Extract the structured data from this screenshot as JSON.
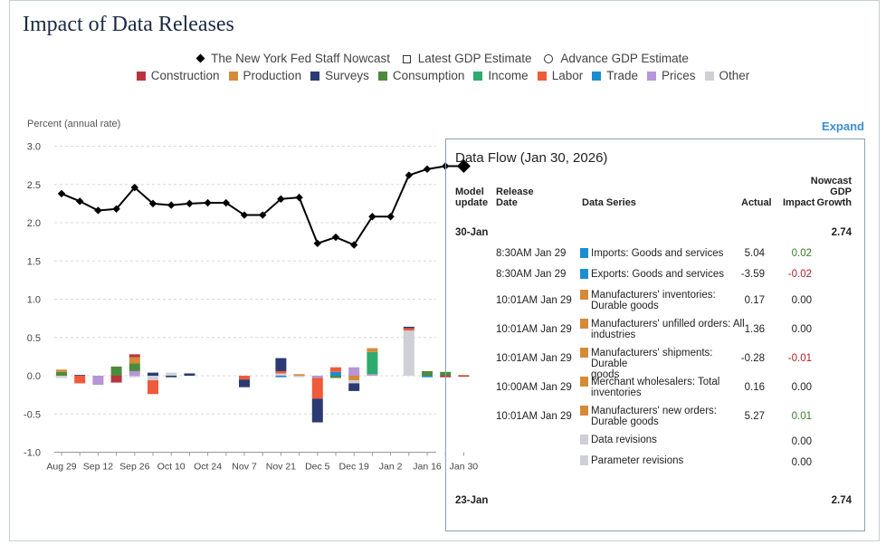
{
  "title": "Impact of Data Releases",
  "legend": {
    "nowcast": "The New York Fed Staff Nowcast",
    "latest": "Latest GDP Estimate",
    "advance": "Advance GDP Estimate",
    "categories": [
      {
        "name": "Construction",
        "color": "#b8343c"
      },
      {
        "name": "Production",
        "color": "#d58a38"
      },
      {
        "name": "Surveys",
        "color": "#2b3a73"
      },
      {
        "name": "Consumption",
        "color": "#4e8a3e"
      },
      {
        "name": "Income",
        "color": "#2eab6e"
      },
      {
        "name": "Labor",
        "color": "#ee5a3a"
      },
      {
        "name": "Trade",
        "color": "#1a8fd0"
      },
      {
        "name": "Prices",
        "color": "#b795d6"
      },
      {
        "name": "Other",
        "color": "#cfd0d5"
      }
    ]
  },
  "chart_data": {
    "type": "bar+line",
    "ylabel": "Percent (annual rate)",
    "ylim": [
      -1.0,
      3.0
    ],
    "yticks": [
      "3.0",
      "2.5",
      "2.0",
      "1.5",
      "1.0",
      "0.5",
      "0.0",
      "-0.5",
      "-1.0"
    ],
    "ytick_values": [
      3.0,
      2.5,
      2.0,
      1.5,
      1.0,
      0.5,
      0.0,
      -0.5,
      -1.0
    ],
    "xtick_labels": [
      "Aug 29",
      "Sep 12",
      "Sep 26",
      "Oct 10",
      "Oct 24",
      "Nov 7",
      "Nov 21",
      "Dec 5",
      "Dec 19",
      "Jan 2",
      "Jan 16",
      "Jan 30"
    ],
    "xtick_index": [
      0,
      2,
      4,
      6,
      8,
      10,
      12,
      14,
      16,
      18,
      20,
      22
    ],
    "nowcast": [
      2.38,
      2.28,
      2.16,
      2.18,
      2.46,
      2.25,
      2.23,
      2.25,
      2.26,
      2.26,
      2.1,
      2.1,
      2.31,
      2.33,
      1.73,
      1.81,
      1.71,
      2.08,
      2.08,
      2.62,
      2.7,
      2.74,
      2.74
    ],
    "bars": [
      [
        {
          "c": "Consumption",
          "v": 0.05
        },
        {
          "c": "Production",
          "v": 0.03
        },
        {
          "c": "Other",
          "v": -0.03
        }
      ],
      [
        {
          "c": "Surveys",
          "v": 0.01
        },
        {
          "c": "Labor",
          "v": -0.1
        }
      ],
      [
        {
          "c": "Prices",
          "v": -0.12
        }
      ],
      [
        {
          "c": "Consumption",
          "v": 0.12
        },
        {
          "c": "Construction",
          "v": -0.09
        }
      ],
      [
        {
          "c": "Prices",
          "v": 0.06
        },
        {
          "c": "Consumption",
          "v": 0.1
        },
        {
          "c": "Production",
          "v": 0.08
        },
        {
          "c": "Construction",
          "v": 0.04
        },
        {
          "c": "Other",
          "v": -0.02
        }
      ],
      [
        {
          "c": "Surveys",
          "v": 0.04
        },
        {
          "c": "Other",
          "v": -0.06
        },
        {
          "c": "Labor",
          "v": -0.18
        }
      ],
      [
        {
          "c": "Other",
          "v": 0.04
        },
        {
          "c": "Surveys",
          "v": -0.02
        }
      ],
      [
        {
          "c": "Surveys",
          "v": 0.03
        }
      ],
      [],
      [],
      [
        {
          "c": "Labor",
          "v": -0.05
        },
        {
          "c": "Surveys",
          "v": -0.1
        }
      ],
      [],
      [
        {
          "c": "Other",
          "v": 0.03
        },
        {
          "c": "Labor",
          "v": 0.03
        },
        {
          "c": "Surveys",
          "v": 0.17
        },
        {
          "c": "Trade",
          "v": -0.02
        }
      ],
      [
        {
          "c": "Production",
          "v": 0.02
        },
        {
          "c": "Other",
          "v": -0.02
        }
      ],
      [
        {
          "c": "Prices",
          "v": -0.03
        },
        {
          "c": "Labor",
          "v": -0.27
        },
        {
          "c": "Surveys",
          "v": -0.31
        }
      ],
      [
        {
          "c": "Trade",
          "v": 0.05
        },
        {
          "c": "Labor",
          "v": 0.06
        },
        {
          "c": "Consumption",
          "v": -0.03
        }
      ],
      [
        {
          "c": "Prices",
          "v": 0.11
        },
        {
          "c": "Production",
          "v": -0.06
        },
        {
          "c": "Other",
          "v": -0.04
        },
        {
          "c": "Surveys",
          "v": -0.1
        }
      ],
      [
        {
          "c": "Prices",
          "v": 0.02
        },
        {
          "c": "Income",
          "v": 0.29
        },
        {
          "c": "Production",
          "v": 0.05
        }
      ],
      [],
      [
        {
          "c": "Other",
          "v": 0.59
        },
        {
          "c": "Labor",
          "v": 0.03
        },
        {
          "c": "Surveys",
          "v": 0.02
        }
      ],
      [
        {
          "c": "Consumption",
          "v": 0.06
        },
        {
          "c": "Trade",
          "v": -0.02
        }
      ],
      [
        {
          "c": "Consumption",
          "v": 0.05
        },
        {
          "c": "Construction",
          "v": -0.02
        }
      ],
      [
        {
          "c": "Production",
          "v": 0.01
        },
        {
          "c": "Construction",
          "v": -0.01
        }
      ]
    ]
  },
  "expand_label": "Expand",
  "panel": {
    "title": "Data Flow (Jan 30, 2026)",
    "headers": {
      "model_update": [
        "Model",
        "update"
      ],
      "release_date": [
        "Release",
        "Date"
      ],
      "data_series": "Data Series",
      "actual": "Actual",
      "impact": "Impact",
      "nowcast": [
        "Nowcast",
        "GDP",
        "Growth"
      ]
    },
    "groups": [
      {
        "label": "30-Jan",
        "nowcast": "2.74"
      },
      {
        "label": "23-Jan",
        "nowcast": "2.74"
      }
    ],
    "rows": [
      {
        "date": "8:30AM Jan 29",
        "series": [
          "Imports: Goods and services"
        ],
        "actual": "5.04",
        "impact": "0.02",
        "sign": "pos",
        "cat": "Trade"
      },
      {
        "date": "8:30AM Jan 29",
        "series": [
          "Exports: Goods and services"
        ],
        "actual": "-3.59",
        "impact": "-0.02",
        "sign": "neg",
        "cat": "Trade"
      },
      {
        "date": "10:01AM Jan 29",
        "series": [
          "Manufacturers' inventories:",
          "Durable goods"
        ],
        "actual": "0.17",
        "impact": "0.00",
        "sign": "zero",
        "cat": "Production"
      },
      {
        "date": "10:01AM Jan 29",
        "series": [
          "Manufacturers' unfilled orders: All",
          "industries"
        ],
        "actual": "1.36",
        "impact": "0.00",
        "sign": "zero",
        "cat": "Production"
      },
      {
        "date": "10:01AM Jan 29",
        "series": [
          "Manufacturers' shipments: Durable",
          "goods"
        ],
        "actual": "-0.28",
        "impact": "-0.01",
        "sign": "neg",
        "cat": "Production"
      },
      {
        "date": "10:00AM Jan 29",
        "series": [
          "Merchant wholesalers: Total",
          "inventories"
        ],
        "actual": "0.16",
        "impact": "0.00",
        "sign": "zero",
        "cat": "Production"
      },
      {
        "date": "10:01AM Jan 29",
        "series": [
          "Manufacturers' new orders:",
          "Durable goods"
        ],
        "actual": "5.27",
        "impact": "0.01",
        "sign": "pos",
        "cat": "Production"
      },
      {
        "date": "",
        "series": [
          "Data revisions"
        ],
        "actual": "",
        "impact": "0.00",
        "sign": "zero",
        "cat": "Other"
      },
      {
        "date": "",
        "series": [
          "Parameter revisions"
        ],
        "actual": "",
        "impact": "0.00",
        "sign": "zero",
        "cat": "Other"
      }
    ]
  }
}
